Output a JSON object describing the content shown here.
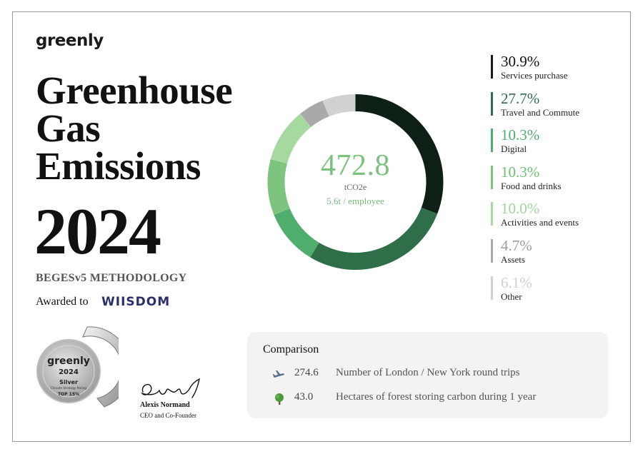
{
  "brand": {
    "logo_text": "greenly"
  },
  "title": {
    "line1": "Greenhouse",
    "line2": "Gas",
    "line3": "Emissions",
    "year": "2024"
  },
  "methodology": "BEGESv5 METHODOLOGY",
  "award": {
    "label": "Awarded to",
    "company": "WIISDOM"
  },
  "badge": {
    "brand": "greenly",
    "year": "2024",
    "level": "Silver",
    "subtitle": "Climate Strategy Rating",
    "rank": "TOP 15%"
  },
  "signature": {
    "name": "Alexis Normand",
    "role": "CEO and Co-Founder"
  },
  "total": {
    "value": "472.8",
    "unit": "tCO2e",
    "per_employee": "5.6t / employee"
  },
  "chart_data": {
    "type": "pie",
    "donut": true,
    "series": [
      {
        "name": "Services purchase",
        "value": 30.9,
        "label": "30.9%",
        "color": "#0e1f15"
      },
      {
        "name": "Travel and Commute",
        "value": 27.7,
        "label": "27.7%",
        "color": "#2e6e48"
      },
      {
        "name": "Digital",
        "value": 10.3,
        "label": "10.3%",
        "color": "#4fae6e"
      },
      {
        "name": "Food and drinks",
        "value": 10.3,
        "label": "10.3%",
        "color": "#7dc47f"
      },
      {
        "name": "Activities and events",
        "value": 10.0,
        "label": "10.0%",
        "color": "#a6d9a0"
      },
      {
        "name": "Assets",
        "value": 4.7,
        "label": "4.7%",
        "color": "#a9a9a9"
      },
      {
        "name": "Other",
        "value": 6.1,
        "label": "6.1%",
        "color": "#d1d1d1"
      }
    ],
    "legend_text_colors": [
      "#111111",
      "#2e6e48",
      "#4fae6e",
      "#6fbf72",
      "#9fd59b",
      "#9e9e9e",
      "#cfcfcf"
    ]
  },
  "comparison": {
    "title": "Comparison",
    "items": [
      {
        "value": "274.6",
        "label": "Number of London / New York round trips",
        "icon": "airplane-icon"
      },
      {
        "value": "43.0",
        "label": "Hectares of forest storing carbon during 1 year",
        "icon": "tree-icon"
      }
    ]
  }
}
